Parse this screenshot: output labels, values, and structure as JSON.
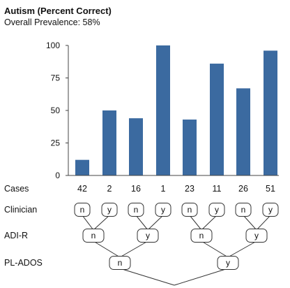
{
  "title": "Autism (Percent Correct)",
  "subtitle": "Overall Prevalence: 58%",
  "colors": {
    "bar": "#3b6aa0",
    "axis": "#444444",
    "node_stroke": "#333333"
  },
  "tree": {
    "level_labels": [
      "Cases",
      "Clinician",
      "ADI-R",
      "PL-ADOS"
    ],
    "clinician": [
      "n",
      "y",
      "n",
      "y",
      "n",
      "y",
      "n",
      "y"
    ],
    "adir": [
      "n",
      "y",
      "n",
      "y"
    ],
    "plados": [
      "n",
      "y"
    ]
  },
  "chart_data": {
    "type": "bar",
    "title": "Autism (Percent Correct)",
    "subtitle": "Overall Prevalence: 58%",
    "categories": [
      "42",
      "2",
      "16",
      "1",
      "23",
      "11",
      "26",
      "51"
    ],
    "values": [
      12,
      50,
      44,
      100,
      43,
      86,
      67,
      96
    ],
    "ylim": [
      0,
      100
    ],
    "yticks": [
      0,
      25,
      50,
      75,
      100
    ],
    "xlabel": "Cases",
    "ylabel": "",
    "grid": false,
    "legend": "none"
  }
}
